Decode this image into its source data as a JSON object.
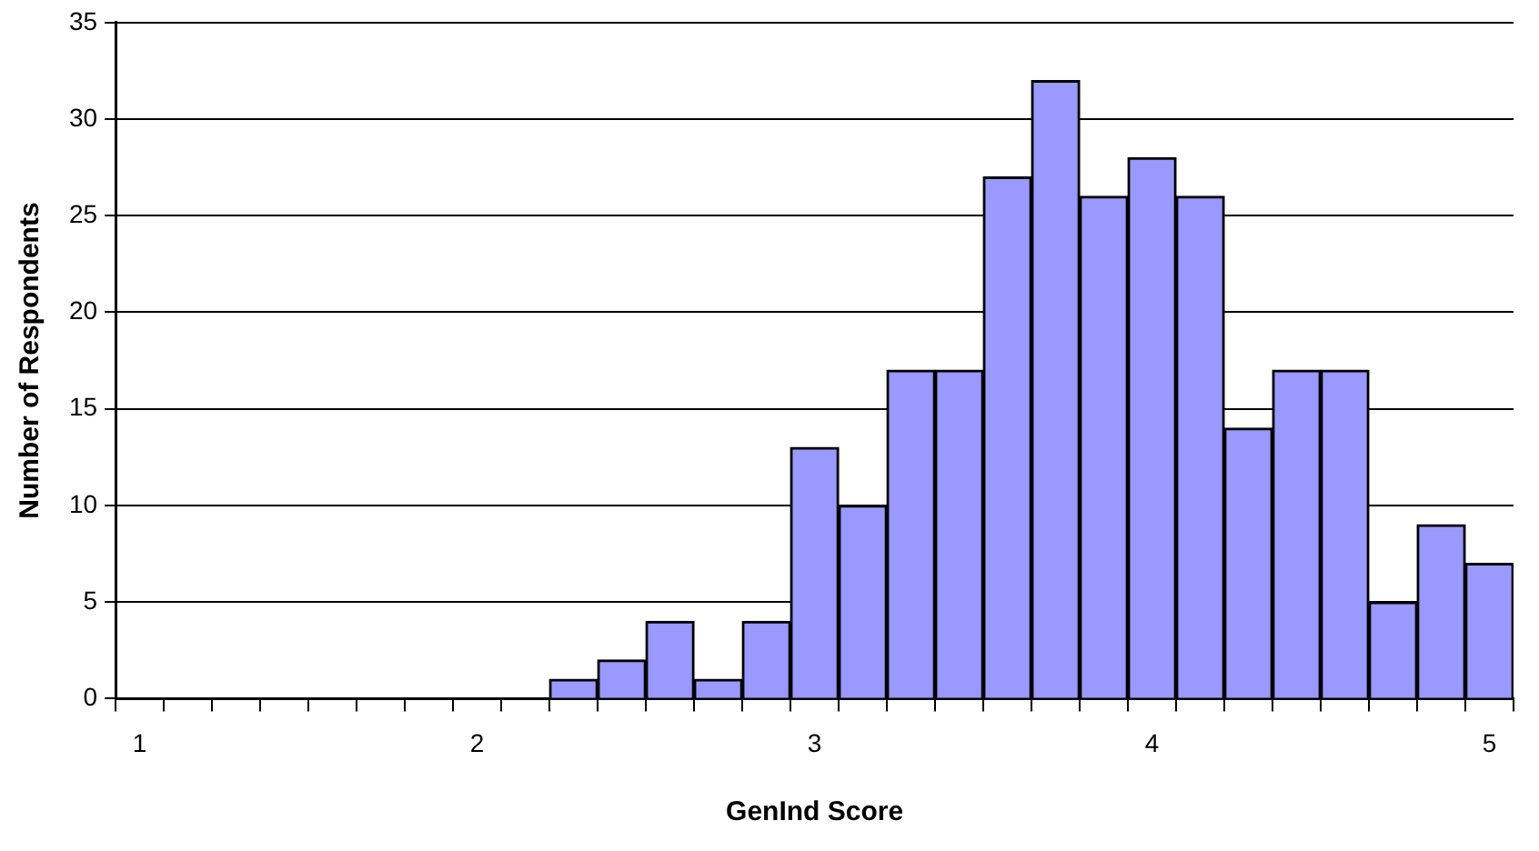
{
  "chart_data": {
    "type": "bar",
    "xlabel": "GenInd Score",
    "ylabel": "Number of Respondents",
    "categories": [
      "1",
      null,
      null,
      null,
      null,
      null,
      null,
      "2",
      null,
      null,
      null,
      null,
      null,
      null,
      "3",
      null,
      null,
      null,
      null,
      null,
      null,
      "4",
      null,
      null,
      null,
      null,
      null,
      null,
      "5"
    ],
    "values": [
      0,
      0,
      0,
      0,
      0,
      0,
      0,
      0,
      0,
      1,
      2,
      4,
      1,
      4,
      13,
      10,
      17,
      17,
      27,
      32,
      26,
      28,
      26,
      14,
      17,
      17,
      5,
      9,
      7
    ],
    "color": "#9999ff",
    "ylim": [
      0,
      35
    ],
    "yticks": [
      0,
      5,
      10,
      15,
      20,
      25,
      30,
      35
    ],
    "grid": "y",
    "legend": false
  }
}
